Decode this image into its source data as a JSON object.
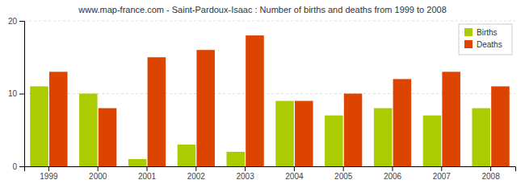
{
  "chart_data": {
    "type": "bar",
    "title": "www.map-france.com - Saint-Pardoux-Isaac : Number of births and deaths from 1999 to 2008",
    "categories": [
      "1999",
      "2000",
      "2001",
      "2002",
      "2003",
      "2004",
      "2005",
      "2006",
      "2007",
      "2008"
    ],
    "series": [
      {
        "name": "Births",
        "color": "#aacc00",
        "values": [
          11,
          10,
          1,
          3,
          2,
          9,
          7,
          8,
          7,
          8
        ]
      },
      {
        "name": "Deaths",
        "color": "#dd4400",
        "values": [
          13,
          8,
          15,
          16,
          18,
          9,
          10,
          12,
          13,
          11
        ]
      }
    ],
    "ylim": [
      0,
      20
    ],
    "yticks": [
      0,
      10,
      20
    ],
    "grid": true,
    "legend": "upper right"
  }
}
